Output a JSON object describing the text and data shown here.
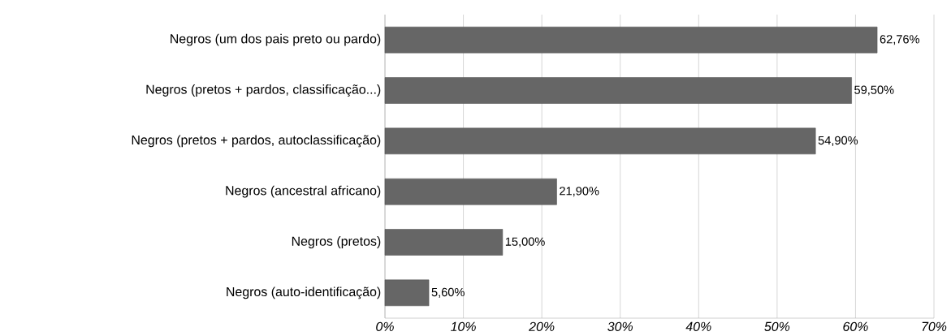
{
  "chart_data": {
    "type": "bar",
    "orientation": "horizontal",
    "categories": [
      "Negros (um dos pais preto ou pardo)",
      "Negros (pretos + pardos, classificação...)",
      "Negros (pretos + pardos, autoclassificação)",
      "Negros (ancestral africano)",
      "Negros (pretos)",
      "Negros (auto-identificação)"
    ],
    "values": [
      62.76,
      59.5,
      54.9,
      21.9,
      15.0,
      5.6
    ],
    "value_labels": [
      "62,76%",
      "59,50%",
      "54,90%",
      "21,90%",
      "15,00%",
      "5,60%"
    ],
    "color": "#666666",
    "xlim": [
      0,
      70
    ],
    "xticks": [
      {
        "value": 0,
        "label": "0%"
      },
      {
        "value": 10,
        "label": "10%"
      },
      {
        "value": 20,
        "label": "20%"
      },
      {
        "value": 30,
        "label": "30%"
      },
      {
        "value": 40,
        "label": "40%"
      },
      {
        "value": 50,
        "label": "50%"
      },
      {
        "value": 60,
        "label": "60%"
      },
      {
        "value": 70,
        "label": "70%"
      }
    ],
    "grid": "x"
  }
}
